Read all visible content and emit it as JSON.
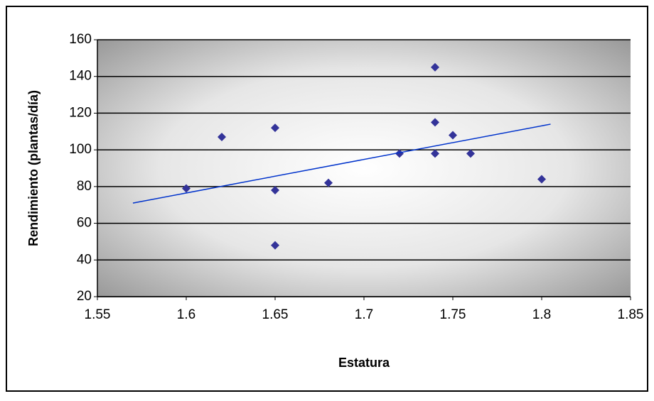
{
  "chart_data": {
    "type": "scatter",
    "x_label": "Estatura",
    "y_label": "Rendimiento (plantas/día)",
    "series": [
      {
        "color": "#333399",
        "x": [
          1.6,
          1.62,
          1.65,
          1.65,
          1.65,
          1.68,
          1.72,
          1.74,
          1.74,
          1.74,
          1.75,
          1.76,
          1.8
        ],
        "values": [
          79,
          107,
          112,
          78,
          48,
          82,
          98,
          145,
          115,
          98,
          108,
          98,
          84
        ]
      }
    ],
    "trendline": {
      "color": "#0033cc",
      "x": [
        1.57,
        1.805
      ],
      "values": [
        71,
        114
      ]
    },
    "xlim": [
      1.55,
      1.85
    ],
    "xticks": [
      1.55,
      1.6,
      1.65,
      1.7,
      1.75,
      1.8,
      1.85
    ],
    "ylim": [
      20,
      160
    ],
    "yticks": [
      20,
      40,
      60,
      80,
      100,
      120,
      140,
      160
    ],
    "grid": true
  }
}
